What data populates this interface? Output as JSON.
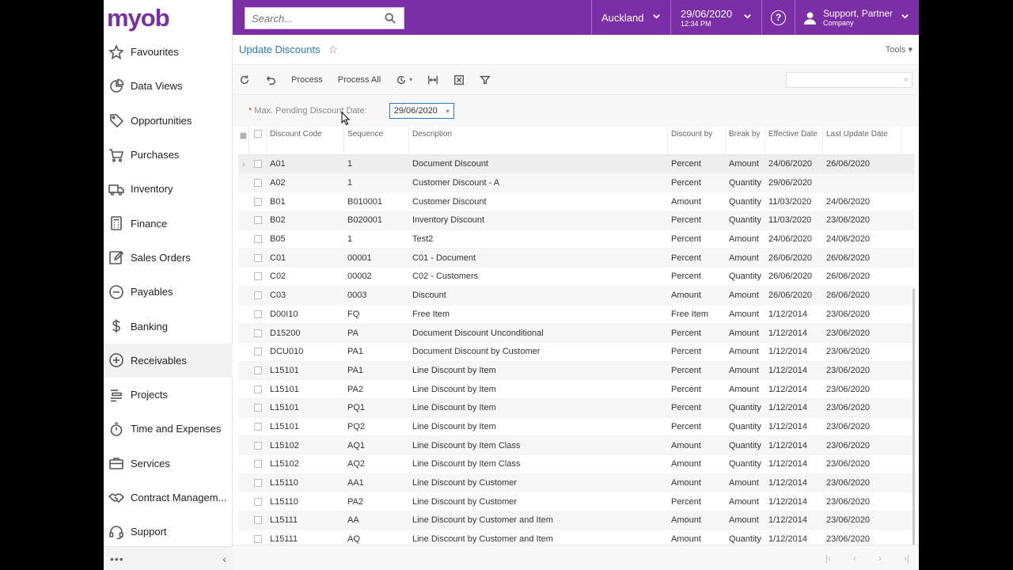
{
  "brand": {
    "logo": "myob"
  },
  "sidebar": {
    "items": [
      {
        "label": "Favourites",
        "icon": "star-icon"
      },
      {
        "label": "Data Views",
        "icon": "pie-chart-icon"
      },
      {
        "label": "Opportunities",
        "icon": "tag-icon"
      },
      {
        "label": "Purchases",
        "icon": "cart-icon"
      },
      {
        "label": "Inventory",
        "icon": "truck-icon"
      },
      {
        "label": "Finance",
        "icon": "calculator-icon"
      },
      {
        "label": "Sales Orders",
        "icon": "edit-icon"
      },
      {
        "label": "Payables",
        "icon": "minus-circle-icon"
      },
      {
        "label": "Banking",
        "icon": "dollar-icon"
      },
      {
        "label": "Receivables",
        "icon": "plus-circle-icon"
      },
      {
        "label": "Projects",
        "icon": "bars-icon"
      },
      {
        "label": "Time and Expenses",
        "icon": "stopwatch-icon"
      },
      {
        "label": "Services",
        "icon": "briefcase-icon"
      },
      {
        "label": "Contract Managem...",
        "icon": "handshake-icon"
      },
      {
        "label": "Support",
        "icon": "headset-icon"
      }
    ],
    "active_index": 9,
    "footer": {
      "more": "•••",
      "collapse": "‹"
    }
  },
  "topbar": {
    "search_placeholder": "Search...",
    "location": "Auckland",
    "date": "29/06/2020",
    "time": "12:34 PM",
    "help": "?",
    "user_name": "Support, Partner",
    "user_company": "Company"
  },
  "page": {
    "title": "Update Discounts",
    "tools": "Tools"
  },
  "toolbar": {
    "process": "Process",
    "process_all": "Process All"
  },
  "filter": {
    "label": "Max. Pending Discount Date:",
    "value": "29/06/2020"
  },
  "grid": {
    "headers": [
      "Discount Code",
      "Sequence",
      "Description",
      "Discount by",
      "Break by",
      "Effective Date",
      "Last Update Date"
    ],
    "rows": [
      [
        "A01",
        "1",
        "Document Discount",
        "Percent",
        "Amount",
        "24/06/2020",
        "26/06/2020"
      ],
      [
        "A02",
        "1",
        "Customer Discount - A",
        "Percent",
        "Quantity",
        "29/06/2020",
        ""
      ],
      [
        "B01",
        "B010001",
        "Customer Discount",
        "Amount",
        "Quantity",
        "11/03/2020",
        "24/06/2020"
      ],
      [
        "B02",
        "B020001",
        "Inventory Discount",
        "Percent",
        "Quantity",
        "11/03/2020",
        "23/06/2020"
      ],
      [
        "B05",
        "1",
        "Test2",
        "Percent",
        "Amount",
        "24/06/2020",
        "24/06/2020"
      ],
      [
        "C01",
        "00001",
        "C01 - Document",
        "Percent",
        "Amount",
        "26/06/2020",
        "26/06/2020"
      ],
      [
        "C02",
        "00002",
        "C02 - Customers",
        "Percent",
        "Quantity",
        "26/06/2020",
        "26/06/2020"
      ],
      [
        "C03",
        "0003",
        "Discount",
        "Amount",
        "Amount",
        "26/06/2020",
        "26/06/2020"
      ],
      [
        "D00I10",
        "FQ",
        "Free Item",
        "Free Item",
        "Amount",
        "1/12/2014",
        "23/06/2020"
      ],
      [
        "D15200",
        "PA",
        "Document Discount Unconditional",
        "Percent",
        "Amount",
        "1/12/2014",
        "23/06/2020"
      ],
      [
        "DCU010",
        "PA1",
        "Document Discount by Customer",
        "Percent",
        "Amount",
        "1/12/2014",
        "23/06/2020"
      ],
      [
        "L15101",
        "PA1",
        "Line Discount by Item",
        "Percent",
        "Amount",
        "1/12/2014",
        "23/06/2020"
      ],
      [
        "L15101",
        "PA2",
        "Line Discount by Item",
        "Percent",
        "Amount",
        "1/12/2014",
        "23/06/2020"
      ],
      [
        "L15101",
        "PQ1",
        "Line Discount by Item",
        "Percent",
        "Quantity",
        "1/12/2014",
        "23/06/2020"
      ],
      [
        "L15101",
        "PQ2",
        "Line Discount by Item",
        "Percent",
        "Quantity",
        "1/12/2014",
        "23/06/2020"
      ],
      [
        "L15102",
        "AQ1",
        "Line Discount by Item Class",
        "Amount",
        "Quantity",
        "1/12/2014",
        "23/06/2020"
      ],
      [
        "L15102",
        "AQ2",
        "Line Discount by Item Class",
        "Amount",
        "Quantity",
        "1/12/2014",
        "23/06/2020"
      ],
      [
        "L15110",
        "AA1",
        "Line Discount by Customer",
        "Amount",
        "Amount",
        "1/12/2014",
        "23/06/2020"
      ],
      [
        "L15110",
        "PA2",
        "Line Discount by Customer",
        "Percent",
        "Amount",
        "1/12/2014",
        "23/06/2020"
      ],
      [
        "L15111",
        "AA",
        "Line Discount by Customer and Item",
        "Amount",
        "Amount",
        "1/12/2014",
        "23/06/2020"
      ],
      [
        "L15111",
        "AQ",
        "Line Discount by Customer and Item",
        "Amount",
        "Quantity",
        "1/12/2014",
        "23/06/2020"
      ]
    ]
  },
  "colors": {
    "brand_purple": "#7b2ea5",
    "link_blue": "#2a7aba"
  }
}
